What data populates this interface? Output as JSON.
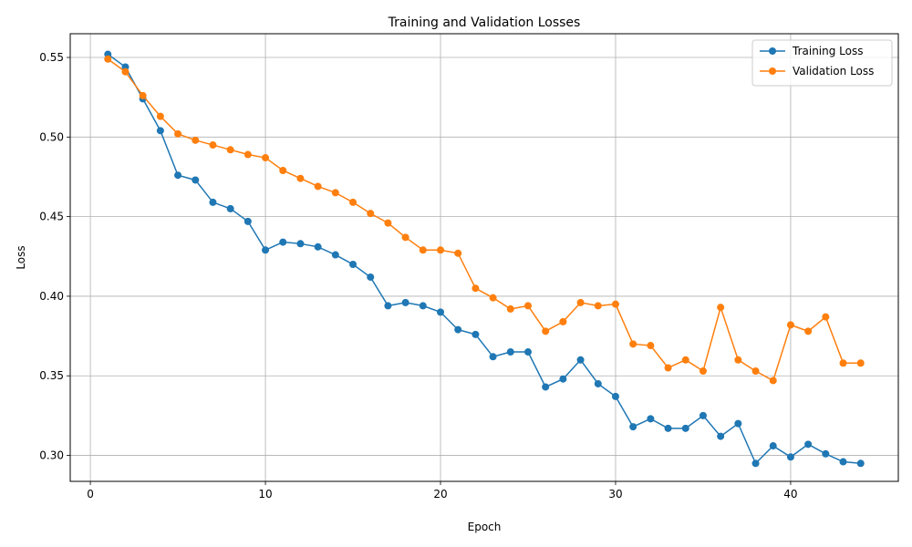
{
  "chart_data": {
    "type": "line",
    "title": "Training and Validation Losses",
    "xlabel": "Epoch",
    "ylabel": "Loss",
    "xlim": [
      -1.15,
      46.15
    ],
    "ylim": [
      0.2837,
      0.5649
    ],
    "xticks": [
      0,
      10,
      20,
      30,
      40
    ],
    "yticks": [
      0.3,
      0.35,
      0.4,
      0.45,
      0.5,
      0.55
    ],
    "ytick_labels": [
      "0.30",
      "0.35",
      "0.40",
      "0.45",
      "0.50",
      "0.55"
    ],
    "grid": true,
    "legend_position": "top-right",
    "x": [
      1,
      2,
      3,
      4,
      5,
      6,
      7,
      8,
      9,
      10,
      11,
      12,
      13,
      14,
      15,
      16,
      17,
      18,
      19,
      20,
      21,
      22,
      23,
      24,
      25,
      26,
      27,
      28,
      29,
      30,
      31,
      32,
      33,
      34,
      35,
      36,
      37,
      38,
      39,
      40,
      41,
      42,
      43,
      44
    ],
    "series": [
      {
        "name": "Training Loss",
        "color": "#1f77b4",
        "values": [
          0.552,
          0.544,
          0.524,
          0.504,
          0.476,
          0.473,
          0.459,
          0.455,
          0.447,
          0.429,
          0.434,
          0.433,
          0.431,
          0.426,
          0.42,
          0.412,
          0.394,
          0.396,
          0.394,
          0.39,
          0.379,
          0.376,
          0.362,
          0.365,
          0.365,
          0.343,
          0.348,
          0.36,
          0.345,
          0.337,
          0.318,
          0.323,
          0.317,
          0.317,
          0.325,
          0.312,
          0.32,
          0.295,
          0.306,
          0.299,
          0.307,
          0.301,
          0.296,
          0.295
        ]
      },
      {
        "name": "Validation Loss",
        "color": "#ff7f0e",
        "values": [
          0.549,
          0.541,
          0.526,
          0.513,
          0.502,
          0.498,
          0.495,
          0.492,
          0.489,
          0.487,
          0.479,
          0.474,
          0.469,
          0.465,
          0.459,
          0.452,
          0.446,
          0.437,
          0.429,
          0.429,
          0.427,
          0.405,
          0.399,
          0.392,
          0.394,
          0.378,
          0.384,
          0.396,
          0.394,
          0.395,
          0.37,
          0.369,
          0.355,
          0.36,
          0.353,
          0.393,
          0.36,
          0.353,
          0.347,
          0.382,
          0.378,
          0.387,
          0.358,
          0.358
        ]
      }
    ]
  }
}
